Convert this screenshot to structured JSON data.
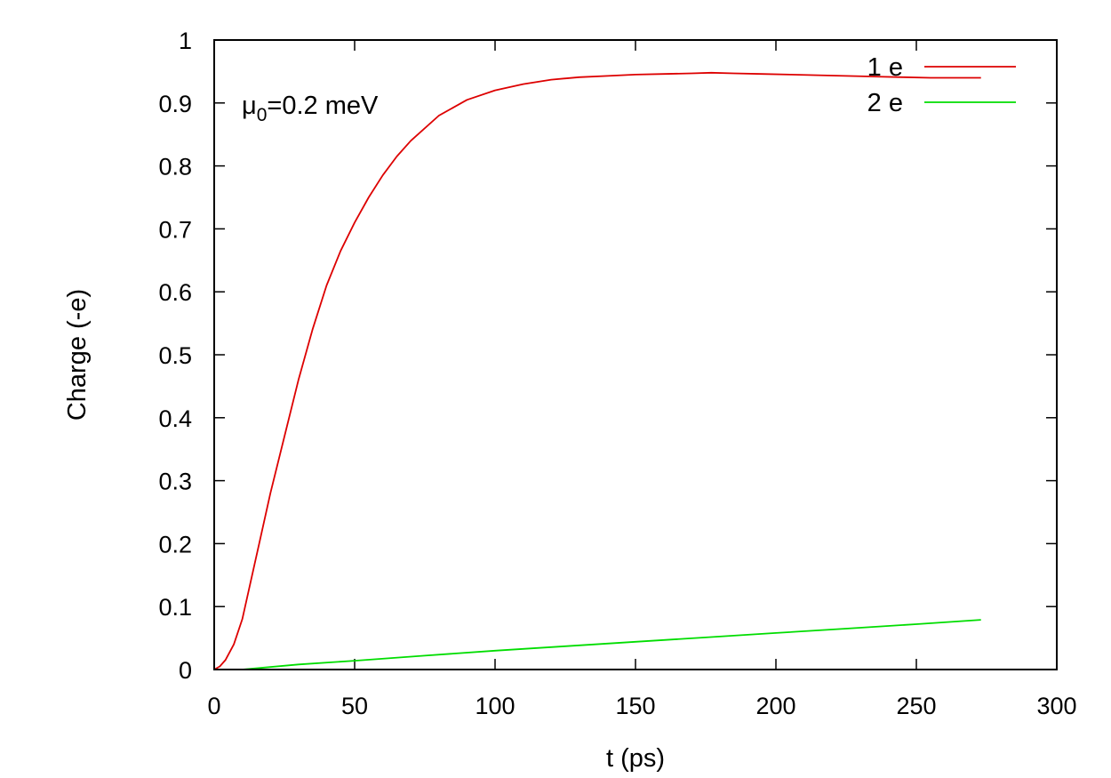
{
  "chart_data": {
    "type": "line",
    "xlabel": "t (ps)",
    "ylabel": "Charge (-e)",
    "xlim": [
      0,
      300
    ],
    "ylim": [
      0,
      1
    ],
    "xticks": [
      0,
      50,
      100,
      150,
      200,
      250,
      300
    ],
    "yticks": [
      0,
      0.1,
      0.2,
      0.3,
      0.4,
      0.5,
      0.6,
      0.7,
      0.8,
      0.9,
      1
    ],
    "xtick_labels": [
      "0",
      "50",
      "100",
      "150",
      "200",
      "250",
      "300"
    ],
    "ytick_labels": [
      "0",
      "0.1",
      "0.2",
      "0.3",
      "0.4",
      "0.5",
      "0.6",
      "0.7",
      "0.8",
      "0.9",
      "1"
    ],
    "grid": false,
    "legend_position": "top-right",
    "annotation": {
      "symbol": "μ",
      "subscript": "0",
      "text": "=0.2 meV"
    },
    "series": [
      {
        "name": "1 e",
        "color": "#dd0000",
        "x": [
          0,
          2,
          4,
          7,
          10,
          13,
          16,
          20,
          25,
          30,
          35,
          40,
          45,
          50,
          55,
          60,
          65,
          70,
          80,
          90,
          100,
          110,
          120,
          130,
          140,
          150,
          160,
          170,
          177,
          185,
          195,
          205,
          215,
          225,
          235,
          245,
          255,
          265,
          273
        ],
        "y": [
          0,
          0.005,
          0.015,
          0.04,
          0.08,
          0.14,
          0.2,
          0.28,
          0.37,
          0.46,
          0.54,
          0.61,
          0.665,
          0.71,
          0.75,
          0.785,
          0.815,
          0.84,
          0.88,
          0.905,
          0.92,
          0.93,
          0.937,
          0.941,
          0.943,
          0.945,
          0.946,
          0.947,
          0.948,
          0.947,
          0.946,
          0.945,
          0.944,
          0.943,
          0.942,
          0.941,
          0.94,
          0.94,
          0.94
        ]
      },
      {
        "name": "2 e",
        "color": "#00dd00",
        "x": [
          0,
          10,
          30,
          50,
          75,
          100,
          125,
          150,
          175,
          200,
          225,
          250,
          273
        ],
        "y": [
          0,
          0.0,
          0.008,
          0.014,
          0.022,
          0.03,
          0.037,
          0.044,
          0.051,
          0.058,
          0.065,
          0.072,
          0.079
        ]
      }
    ]
  }
}
